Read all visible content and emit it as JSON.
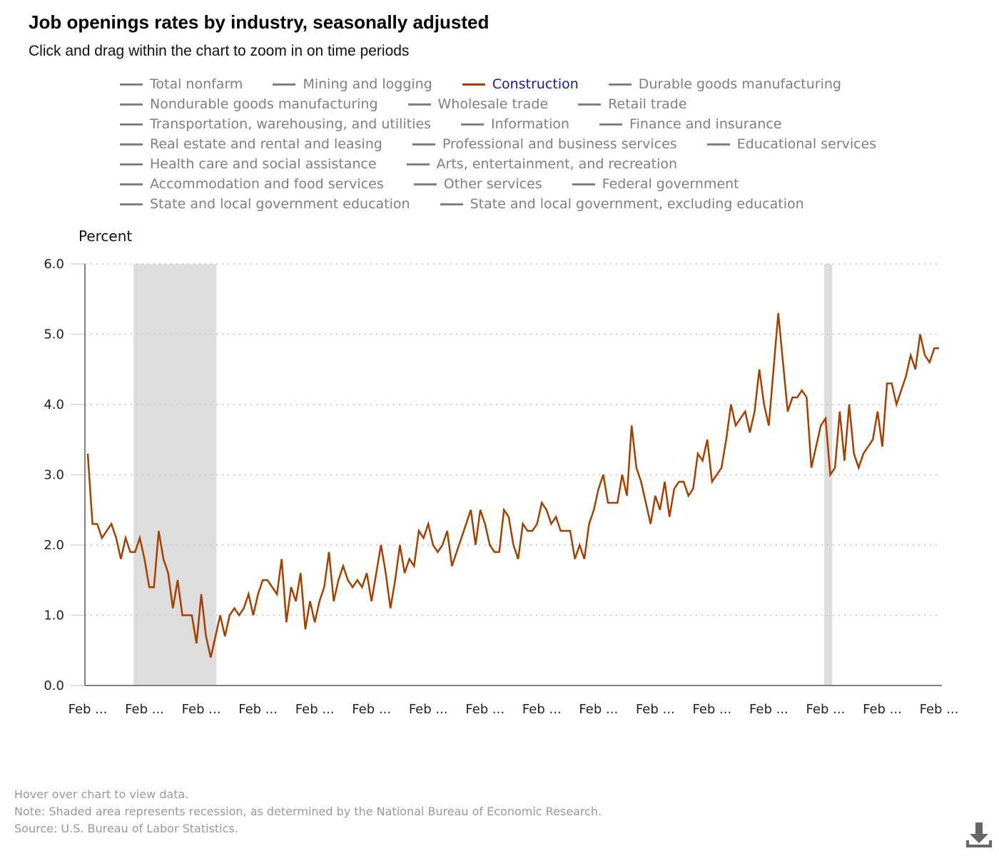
{
  "header": {
    "title": "Job openings rates by industry, seasonally adjusted",
    "subtitle": "Click and drag within the chart to zoom in on time periods"
  },
  "legend": {
    "rows": [
      [
        {
          "label": "Total nonfarm",
          "active": false
        },
        {
          "label": "Mining and logging",
          "active": false
        },
        {
          "label": "Construction",
          "active": true
        },
        {
          "label": "Durable goods manufacturing",
          "active": false
        }
      ],
      [
        {
          "label": "Nondurable goods manufacturing",
          "active": false
        },
        {
          "label": "Wholesale trade",
          "active": false
        },
        {
          "label": "Retail trade",
          "active": false
        }
      ],
      [
        {
          "label": "Transportation, warehousing, and utilities",
          "active": false
        },
        {
          "label": "Information",
          "active": false
        },
        {
          "label": "Finance and insurance",
          "active": false
        }
      ],
      [
        {
          "label": "Real estate and rental and leasing",
          "active": false
        },
        {
          "label": "Professional and business services",
          "active": false
        },
        {
          "label": "Educational services",
          "active": false
        }
      ],
      [
        {
          "label": "Health care and social assistance",
          "active": false
        },
        {
          "label": "Arts, entertainment, and recreation",
          "active": false
        }
      ],
      [
        {
          "label": "Accommodation and food services",
          "active": false
        },
        {
          "label": "Other services",
          "active": false
        },
        {
          "label": "Federal government",
          "active": false
        }
      ],
      [
        {
          "label": "State and local government education",
          "active": false
        },
        {
          "label": "State and local government, excluding education",
          "active": false
        }
      ]
    ]
  },
  "colors": {
    "active_series": "#a34100",
    "inactive_series": "#808080",
    "active_label": "#1a1a8c",
    "recession_shade": "#dddddd",
    "gridline": "#c0c0c0"
  },
  "chart_data": {
    "type": "line",
    "title": "Job openings rates by industry, seasonally adjusted",
    "xlabel": "",
    "ylabel": "Percent",
    "ylim": [
      0,
      6
    ],
    "yticks": [
      "0.0",
      "1.0",
      "2.0",
      "3.0",
      "4.0",
      "5.0",
      "6.0"
    ],
    "xtick_labels": [
      "Feb ...",
      "Feb ...",
      "Feb ...",
      "Feb ...",
      "Feb ...",
      "Feb ...",
      "Feb ...",
      "Feb ...",
      "Feb ...",
      "Feb ...",
      "Feb ...",
      "Feb ...",
      "Feb ...",
      "Feb ...",
      "Feb ...",
      "Feb ..."
    ],
    "xtick_every_months": 12,
    "grid": "horizontal dotted",
    "recessions_month_index": [
      [
        10,
        27.5
      ],
      [
        156,
        157.7
      ]
    ],
    "series": [
      {
        "name": "Construction",
        "values": [
          3.3,
          2.3,
          2.3,
          2.1,
          2.2,
          2.3,
          2.1,
          1.8,
          2.1,
          1.9,
          1.9,
          2.1,
          1.8,
          1.4,
          1.4,
          2.2,
          1.8,
          1.6,
          1.1,
          1.5,
          1.0,
          1.0,
          1.0,
          0.6,
          1.3,
          0.7,
          0.4,
          0.7,
          1.0,
          0.7,
          1.0,
          1.1,
          1.0,
          1.1,
          1.3,
          1.0,
          1.3,
          1.5,
          1.5,
          1.4,
          1.3,
          1.8,
          0.9,
          1.4,
          1.2,
          1.6,
          0.8,
          1.2,
          0.9,
          1.2,
          1.4,
          1.9,
          1.2,
          1.5,
          1.7,
          1.5,
          1.4,
          1.5,
          1.4,
          1.6,
          1.2,
          1.6,
          2.0,
          1.6,
          1.1,
          1.5,
          2.0,
          1.6,
          1.8,
          1.7,
          2.2,
          2.1,
          2.3,
          2.0,
          1.9,
          2.0,
          2.2,
          1.7,
          1.9,
          2.1,
          2.3,
          2.5,
          2.0,
          2.5,
          2.3,
          2.0,
          1.9,
          1.9,
          2.5,
          2.4,
          2.0,
          1.8,
          2.3,
          2.2,
          2.2,
          2.3,
          2.6,
          2.5,
          2.3,
          2.4,
          2.2,
          2.2,
          2.2,
          1.8,
          2.0,
          1.8,
          2.3,
          2.5,
          2.8,
          3.0,
          2.6,
          2.6,
          2.6,
          3.0,
          2.7,
          3.7,
          3.1,
          2.9,
          2.6,
          2.3,
          2.7,
          2.5,
          2.9,
          2.4,
          2.8,
          2.9,
          2.9,
          2.7,
          2.8,
          3.3,
          3.2,
          3.5,
          2.9,
          3.0,
          3.1,
          3.5,
          4.0,
          3.7,
          3.8,
          3.9,
          3.6,
          3.9,
          4.5,
          4.0,
          3.7,
          4.5,
          5.3,
          4.6,
          3.9,
          4.1,
          4.1,
          4.2,
          4.1,
          3.1,
          3.4,
          3.7,
          3.8,
          3.0,
          3.1,
          3.9,
          3.2,
          4.0,
          3.3,
          3.1,
          3.3,
          3.4,
          3.5,
          3.9,
          3.4,
          4.3,
          4.3,
          4.0,
          4.2,
          4.4,
          4.7,
          4.5,
          5.0,
          4.7,
          4.6,
          4.8,
          4.8
        ]
      }
    ]
  },
  "footer": {
    "hover_note": "Hover over chart to view data.",
    "recession_note": "Note: Shaded area represents recession, as determined by the National Bureau of Economic Research.",
    "source": "Source: U.S. Bureau of Labor Statistics."
  },
  "download": {
    "icon": "download-icon"
  }
}
